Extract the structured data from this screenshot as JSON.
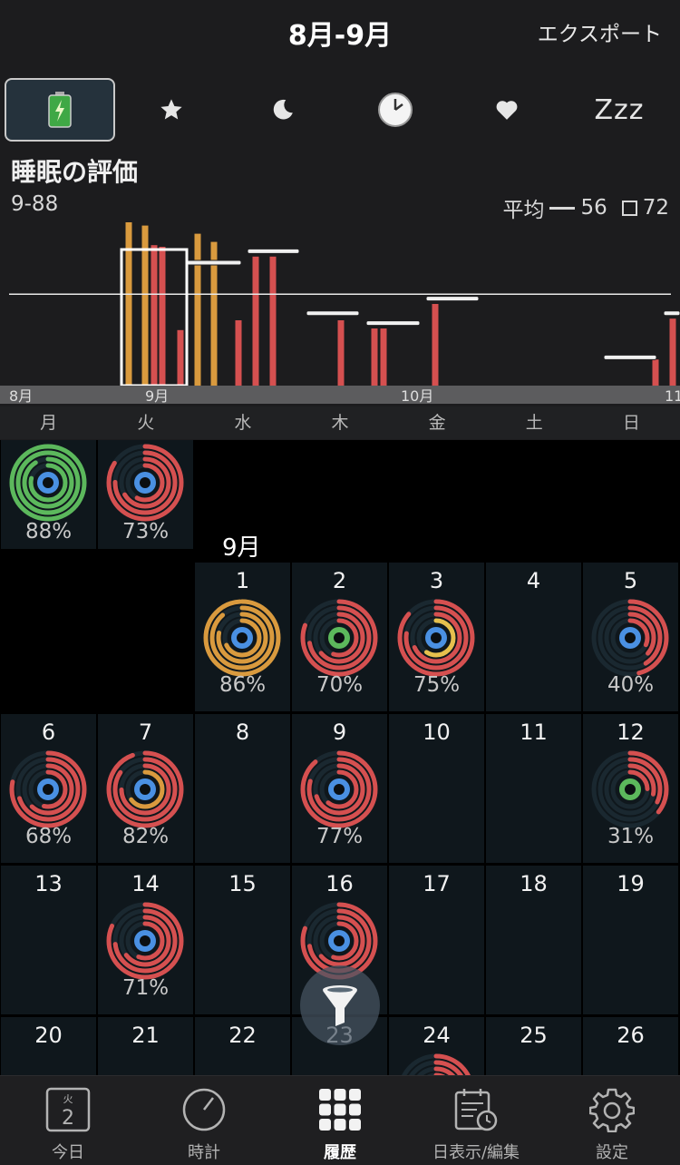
{
  "header": {
    "title": "8月-9月",
    "export_label": "エクスポート"
  },
  "tabs": [
    {
      "name": "battery-icon",
      "selected": true
    },
    {
      "name": "star-icon",
      "selected": false
    },
    {
      "name": "moon-icon",
      "selected": false
    },
    {
      "name": "clock-icon",
      "selected": false
    },
    {
      "name": "heart-icon",
      "selected": false
    },
    {
      "name": "zzz-icon",
      "label": "Zzz",
      "selected": false
    }
  ],
  "chart": {
    "title": "睡眠の評価",
    "range": "9-88",
    "avg_label": "平均",
    "avg_value": "56",
    "box_value": "72"
  },
  "chart_data": {
    "type": "bar",
    "ylim": [
      0,
      100
    ],
    "average_line": 56,
    "x_tick_labels": [
      "8月",
      "9月",
      "10月",
      "11"
    ],
    "bars_orange": [
      {
        "x": 142,
        "value": 100
      },
      {
        "x": 160,
        "value": 98
      },
      {
        "x": 218,
        "value": 93
      },
      {
        "x": 236,
        "value": 88
      }
    ],
    "bars_red": [
      {
        "x": 170,
        "value": 86
      },
      {
        "x": 179,
        "value": 85
      },
      {
        "x": 199,
        "value": 34
      },
      {
        "x": 263,
        "value": 40
      },
      {
        "x": 282,
        "value": 79
      },
      {
        "x": 301,
        "value": 79
      },
      {
        "x": 376,
        "value": 40
      },
      {
        "x": 413,
        "value": 35
      },
      {
        "x": 423,
        "value": 35
      },
      {
        "x": 480,
        "value": 50
      },
      {
        "x": 723,
        "value": 16
      },
      {
        "x": 742,
        "value": 41
      }
    ],
    "average_markers": [
      {
        "x1": 206,
        "x2": 266,
        "value": 75
      },
      {
        "x1": 273,
        "x2": 330,
        "value": 82
      },
      {
        "x1": 338,
        "x2": 396,
        "value": 44
      },
      {
        "x1": 404,
        "x2": 463,
        "value": 38
      },
      {
        "x1": 470,
        "x2": 528,
        "value": 53
      },
      {
        "x1": 666,
        "x2": 724,
        "value": 17
      },
      {
        "x1": 732,
        "x2": 750,
        "value": 44
      }
    ],
    "selected_week": {
      "x1": 134,
      "x2": 206
    }
  },
  "weekdays": [
    "月",
    "火",
    "水",
    "木",
    "金",
    "土",
    "日"
  ],
  "calendar": {
    "month_label": "9月",
    "colors": {
      "orange": "#d99a3e",
      "red": "#d55050",
      "green": "#5cb85c",
      "blue": "#4a90e2",
      "yellow": "#e6c04d"
    },
    "prev_days": [
      {
        "col": 0,
        "percent": "88%",
        "color": "green",
        "fill": 1.0,
        "center": "blue"
      },
      {
        "col": 1,
        "percent": "73%",
        "color": "red",
        "fill": 0.73,
        "center": "blue"
      }
    ],
    "days": [
      {
        "day": "1",
        "row": 0,
        "col": 2,
        "percent": "86%",
        "color": "orange",
        "fill": 0.86,
        "center": "blue"
      },
      {
        "day": "2",
        "row": 0,
        "col": 3,
        "percent": "70%",
        "color": "red",
        "fill": 0.7,
        "center": "green"
      },
      {
        "day": "3",
        "row": 0,
        "col": 4,
        "percent": "75%",
        "color": "red",
        "fill": 0.75,
        "center": "blue",
        "inner": "yellow"
      },
      {
        "day": "4",
        "row": 0,
        "col": 5
      },
      {
        "day": "5",
        "row": 0,
        "col": 6,
        "percent": "40%",
        "color": "red",
        "fill": 0.4,
        "center": "blue"
      },
      {
        "day": "6",
        "row": 1,
        "col": 0,
        "percent": "68%",
        "color": "red",
        "fill": 0.68,
        "center": "blue"
      },
      {
        "day": "7",
        "row": 1,
        "col": 1,
        "percent": "82%",
        "color": "red",
        "fill": 0.82,
        "center": "blue",
        "inner": "orange"
      },
      {
        "day": "8",
        "row": 1,
        "col": 2
      },
      {
        "day": "9",
        "row": 1,
        "col": 3,
        "percent": "77%",
        "color": "red",
        "fill": 0.77,
        "center": "blue"
      },
      {
        "day": "10",
        "row": 1,
        "col": 4
      },
      {
        "day": "11",
        "row": 1,
        "col": 5
      },
      {
        "day": "12",
        "row": 1,
        "col": 6,
        "percent": "31%",
        "color": "red",
        "fill": 0.31,
        "center": "green"
      },
      {
        "day": "13",
        "row": 2,
        "col": 0
      },
      {
        "day": "14",
        "row": 2,
        "col": 1,
        "percent": "71%",
        "color": "red",
        "fill": 0.71,
        "center": "blue"
      },
      {
        "day": "15",
        "row": 2,
        "col": 2
      },
      {
        "day": "16",
        "row": 2,
        "col": 3,
        "color": "red",
        "fill": 0.7,
        "center": "blue"
      },
      {
        "day": "17",
        "row": 2,
        "col": 4
      },
      {
        "day": "18",
        "row": 2,
        "col": 5
      },
      {
        "day": "19",
        "row": 2,
        "col": 6
      },
      {
        "day": "20",
        "row": 3,
        "col": 0
      },
      {
        "day": "21",
        "row": 3,
        "col": 1
      },
      {
        "day": "22",
        "row": 3,
        "col": 2
      },
      {
        "day": "23",
        "row": 3,
        "col": 3
      },
      {
        "day": "24",
        "row": 3,
        "col": 4,
        "color": "red",
        "fill": 0.7,
        "center": "blue"
      },
      {
        "day": "25",
        "row": 3,
        "col": 5
      },
      {
        "day": "26",
        "row": 3,
        "col": 6
      }
    ]
  },
  "nav": [
    {
      "label": "今日",
      "icon": "calendar-today-icon",
      "sub": "火",
      "num": "2",
      "active": false
    },
    {
      "label": "時計",
      "icon": "clock-dial-icon",
      "active": false
    },
    {
      "label": "履歴",
      "icon": "grid-icon",
      "active": true
    },
    {
      "label": "日表示/編集",
      "icon": "day-edit-icon",
      "active": false
    },
    {
      "label": "設定",
      "icon": "gear-icon",
      "active": false
    }
  ]
}
